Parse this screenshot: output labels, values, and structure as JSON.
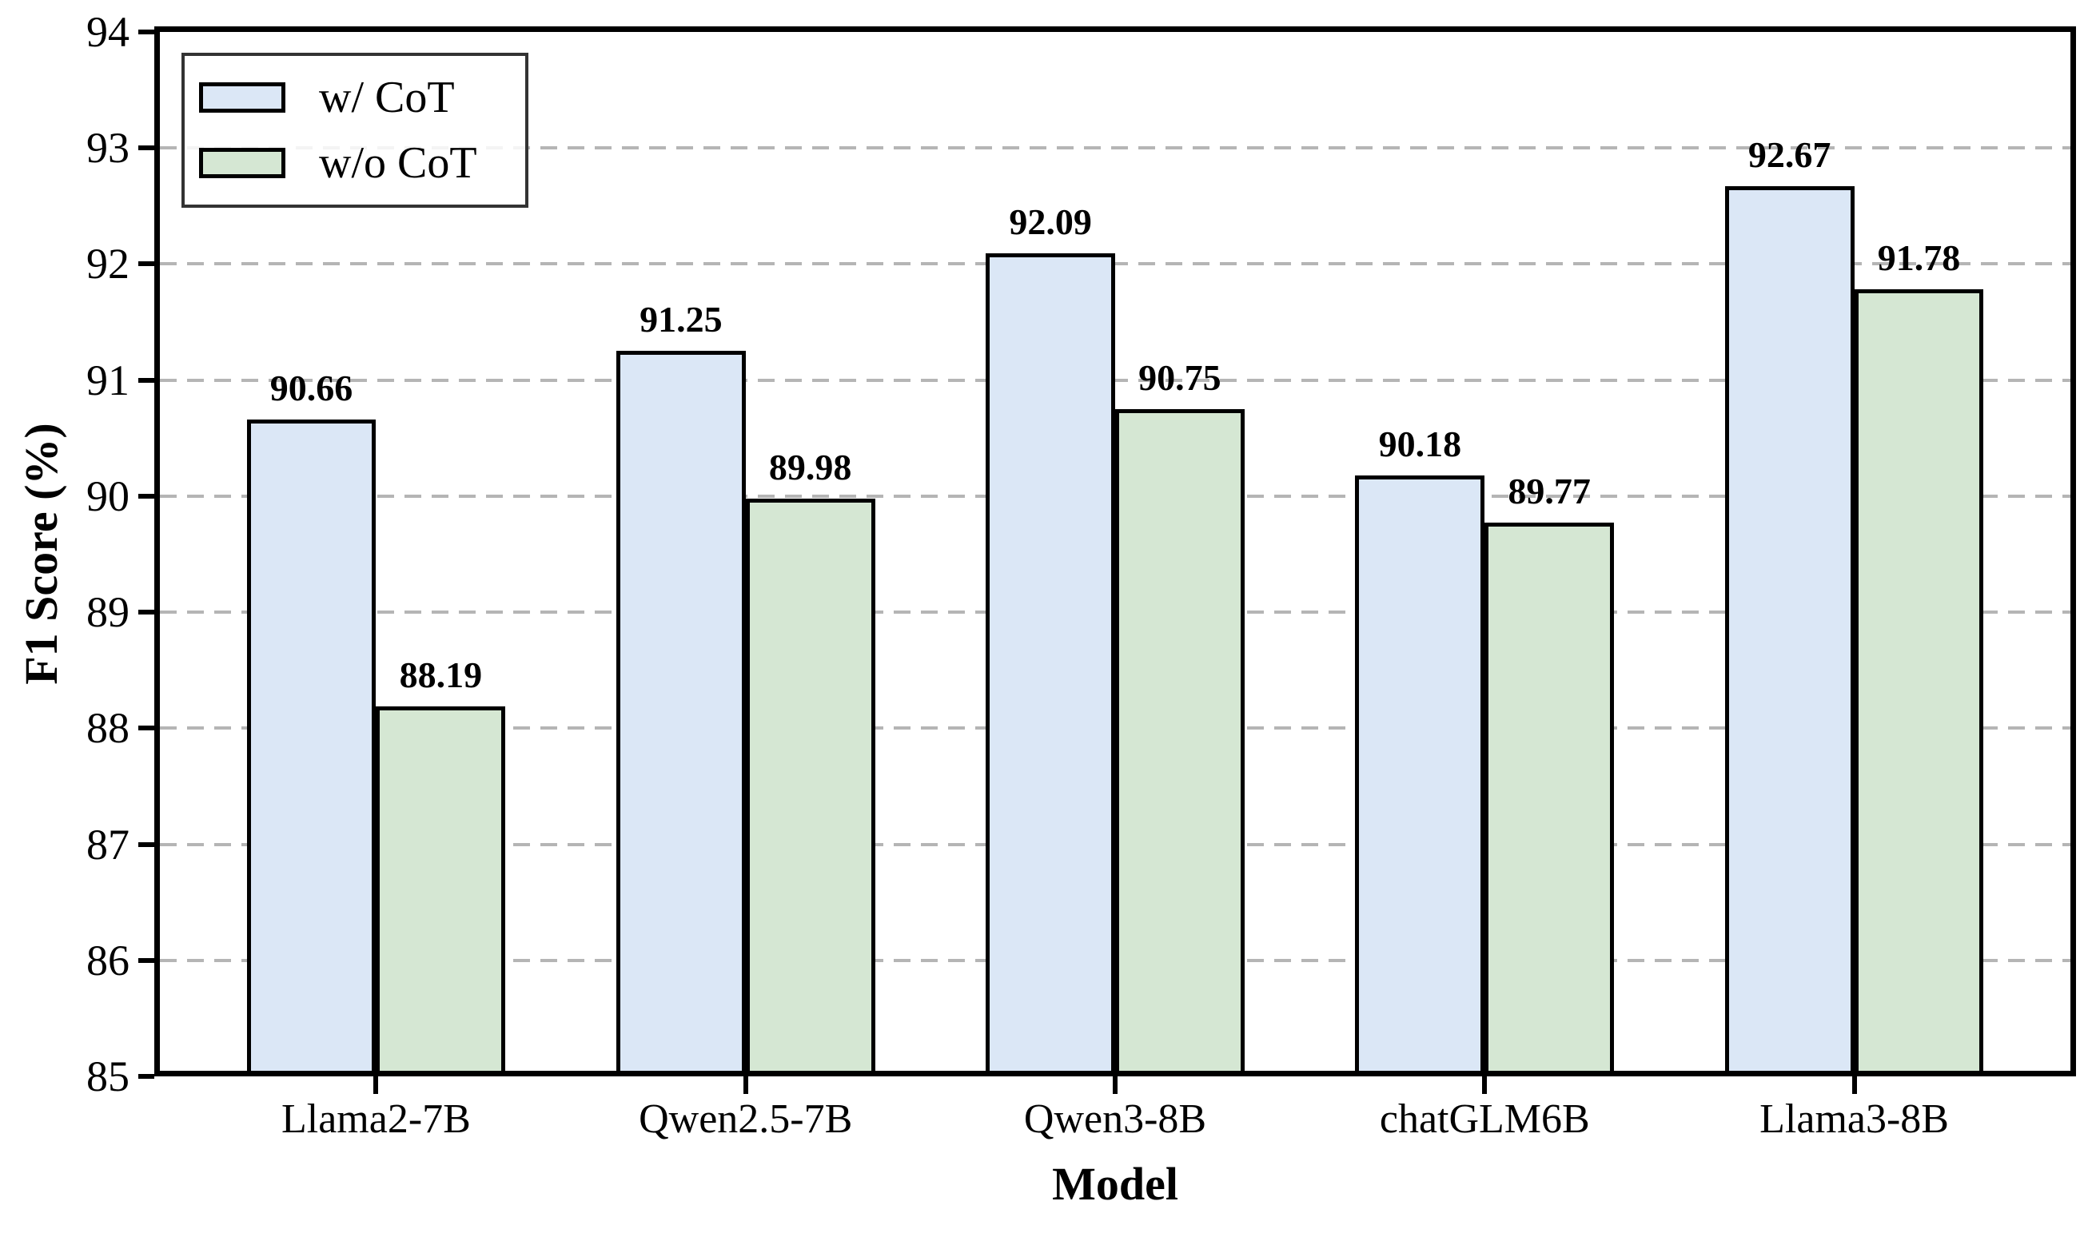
{
  "chart_data": {
    "type": "bar",
    "categories": [
      "Llama2-7B",
      "Qwen2.5-7B",
      "Qwen3-8B",
      "chatGLM6B",
      "Llama3-8B"
    ],
    "series": [
      {
        "name": "w/ CoT",
        "color": "#dbe7f6",
        "values": [
          90.66,
          91.25,
          92.09,
          90.18,
          92.67
        ]
      },
      {
        "name": "w/o CoT",
        "color": "#d5e7d3",
        "values": [
          88.19,
          89.98,
          90.75,
          89.77,
          91.78
        ]
      }
    ],
    "xlabel": "Model",
    "ylabel": "F1 Score (%)",
    "ylim": [
      85,
      94
    ],
    "yticks": [
      85,
      86,
      87,
      88,
      89,
      90,
      91,
      92,
      93,
      94
    ],
    "grid": "horizontal-dashed",
    "grid_color": "#b5b5b5",
    "bar_edge_color": "#000000",
    "legend_position": "upper-left",
    "value_labels_decimals": 2
  }
}
